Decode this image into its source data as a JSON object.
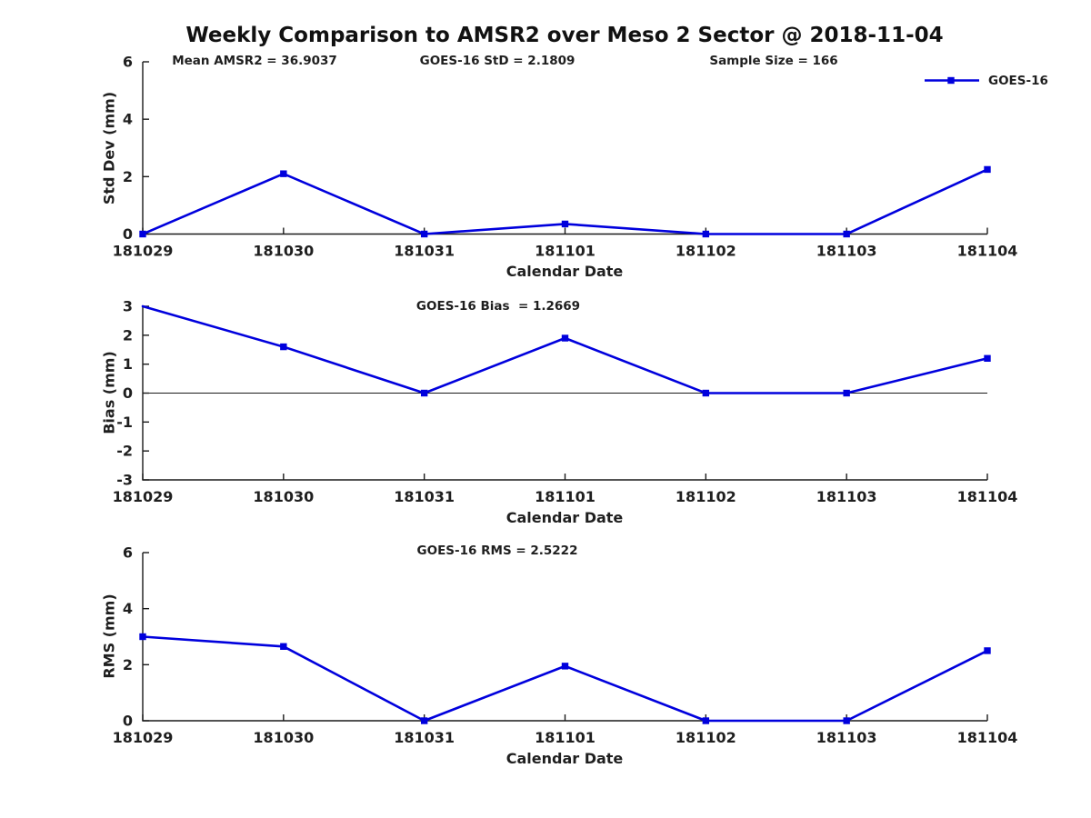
{
  "title": "Weekly Comparison to AMSR2 over Meso 2 Sector @ 2018-11-04",
  "legend": {
    "label": "GOES-16"
  },
  "colors": {
    "line": "#0000DD",
    "axis": "#1a1a1a",
    "text": "#1f1f1f",
    "background": "#ffffff"
  },
  "chart_data": [
    {
      "type": "line",
      "subplot": "std-dev",
      "xlabel": "Calendar Date",
      "ylabel": "Std Dev (mm)",
      "categories": [
        "181029",
        "181030",
        "181031",
        "181101",
        "181102",
        "181103",
        "181104"
      ],
      "series": [
        {
          "name": "GOES-16",
          "marker": "square",
          "values": [
            0.0,
            2.1,
            0.0,
            0.35,
            0.0,
            0.0,
            2.25
          ]
        }
      ],
      "ylim": [
        0,
        6
      ],
      "yticks": [
        0,
        2,
        4,
        6
      ],
      "grid": false,
      "legend_entries": [
        "GOES-16"
      ],
      "legend_position": "top-right",
      "annotations": [
        "Mean AMSR2 = 36.9037",
        "GOES-16 StD = 2.1809",
        "Sample Size = 166"
      ]
    },
    {
      "type": "line",
      "subplot": "bias",
      "xlabel": "Calendar Date",
      "ylabel": "Bias (mm)",
      "categories": [
        "181029",
        "181030",
        "181031",
        "181101",
        "181102",
        "181103",
        "181104"
      ],
      "series": [
        {
          "name": "GOES-16",
          "marker": "square",
          "values": [
            3.0,
            1.6,
            0.0,
            1.9,
            0.0,
            0.0,
            1.2
          ]
        }
      ],
      "ylim": [
        -3,
        3
      ],
      "yticks": [
        -3,
        -2,
        -1,
        0,
        1,
        2,
        3
      ],
      "grid": false,
      "zero_line": true,
      "annotations": [
        "GOES-16 Bias  = 1.2669"
      ]
    },
    {
      "type": "line",
      "subplot": "rms",
      "xlabel": "Calendar Date",
      "ylabel": "RMS (mm)",
      "categories": [
        "181029",
        "181030",
        "181031",
        "181101",
        "181102",
        "181103",
        "181104"
      ],
      "series": [
        {
          "name": "GOES-16",
          "marker": "square",
          "values": [
            3.0,
            2.65,
            0.0,
            1.95,
            0.0,
            0.0,
            2.5
          ]
        }
      ],
      "ylim": [
        0,
        6
      ],
      "yticks": [
        0,
        2,
        4,
        6
      ],
      "grid": false,
      "annotations": [
        "GOES-16 RMS = 2.5222"
      ]
    }
  ]
}
